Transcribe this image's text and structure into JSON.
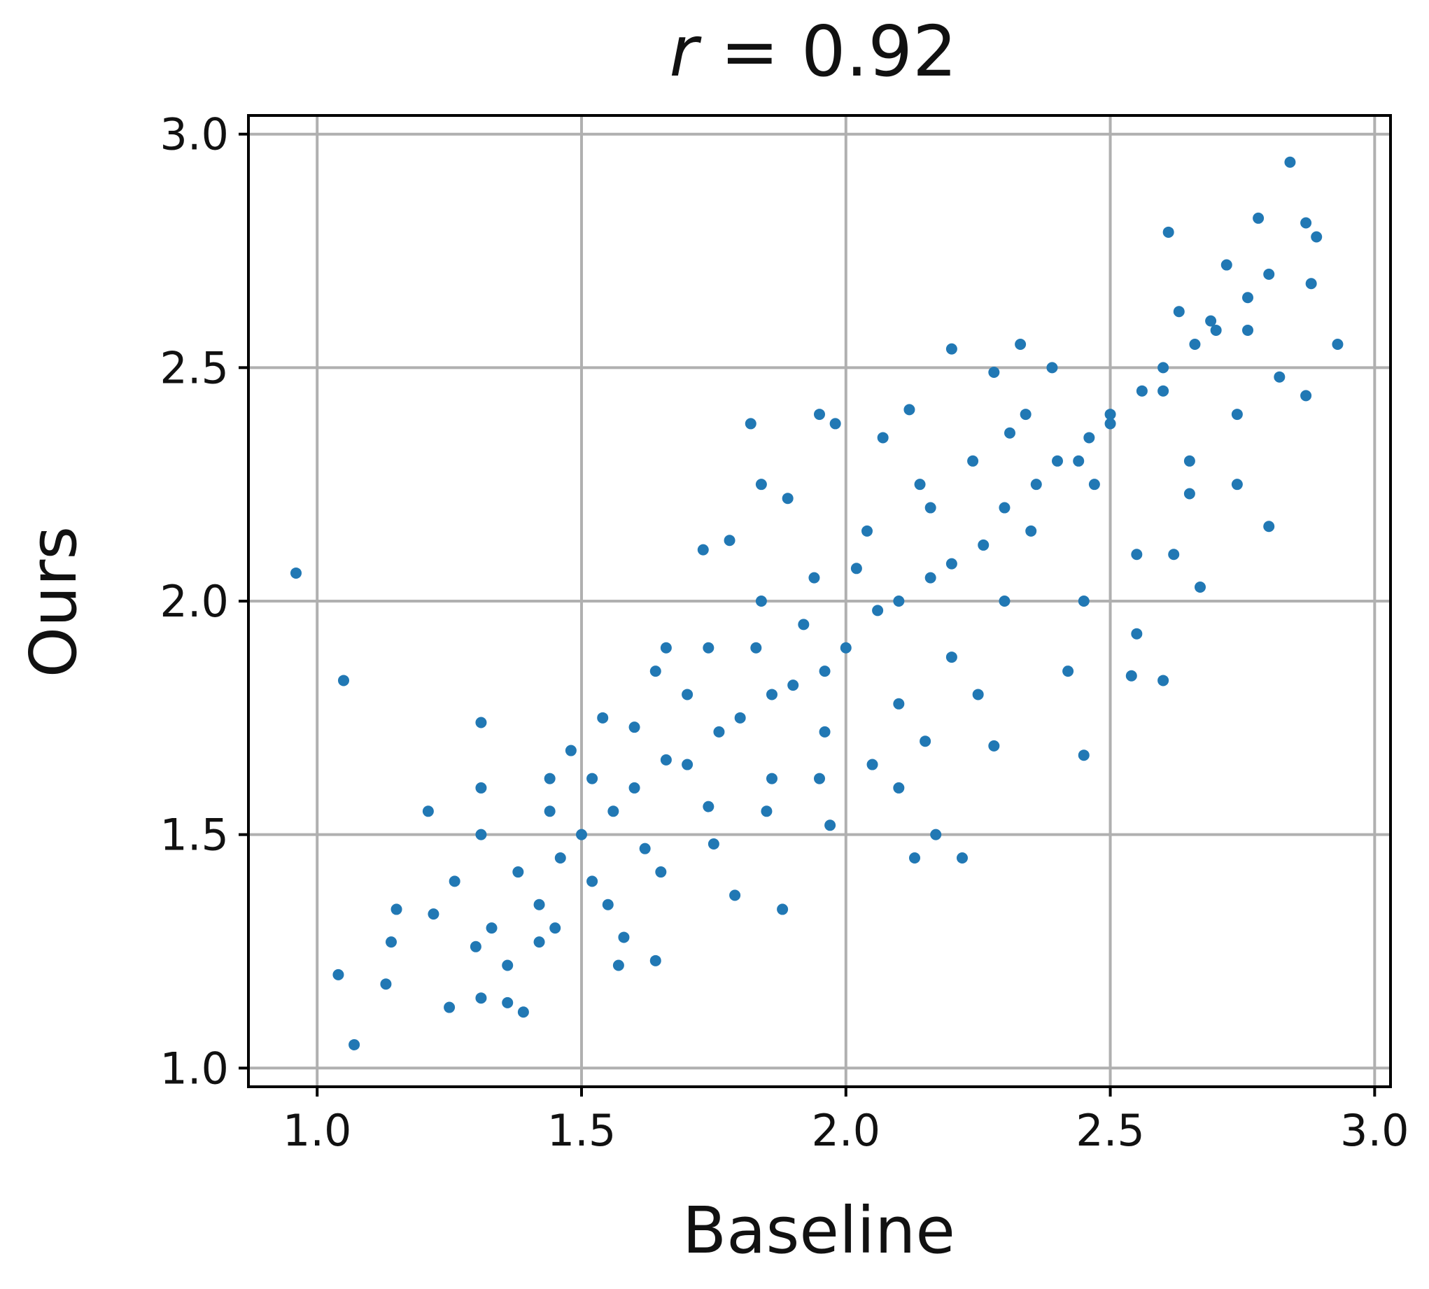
{
  "chart_data": {
    "type": "scatter",
    "title_prefix": "r",
    "title_rest": " = 0.92",
    "xlabel": "Baseline",
    "ylabel": "Ours",
    "xlim": [
      0.87,
      3.03
    ],
    "ylim": [
      0.96,
      3.04
    ],
    "xticks": [
      "1.0",
      "1.5",
      "2.0",
      "2.5",
      "3.0"
    ],
    "yticks": [
      "1.0",
      "1.5",
      "2.0",
      "2.5",
      "3.0"
    ],
    "grid": true,
    "marker_color": "#2178b4",
    "points": [
      [
        0.96,
        2.06
      ],
      [
        1.05,
        1.83
      ],
      [
        1.04,
        1.2
      ],
      [
        1.07,
        1.05
      ],
      [
        1.13,
        1.18
      ],
      [
        1.14,
        1.27
      ],
      [
        1.15,
        1.34
      ],
      [
        1.21,
        1.55
      ],
      [
        1.31,
        1.74
      ],
      [
        1.31,
        1.6
      ],
      [
        1.31,
        1.5
      ],
      [
        1.26,
        1.4
      ],
      [
        1.22,
        1.33
      ],
      [
        1.25,
        1.13
      ],
      [
        1.31,
        1.15
      ],
      [
        1.39,
        1.12
      ],
      [
        1.36,
        1.14
      ],
      [
        1.82,
        2.38
      ],
      [
        1.95,
        2.4
      ],
      [
        1.98,
        2.38
      ],
      [
        2.2,
        2.54
      ],
      [
        2.33,
        2.55
      ],
      [
        2.61,
        2.79
      ],
      [
        2.78,
        2.82
      ],
      [
        2.84,
        2.94
      ],
      [
        2.87,
        2.81
      ],
      [
        2.89,
        2.78
      ],
      [
        2.93,
        2.55
      ],
      [
        2.87,
        2.44
      ],
      [
        2.8,
        2.16
      ],
      [
        2.74,
        2.25
      ],
      [
        2.54,
        1.84
      ],
      [
        2.6,
        1.83
      ],
      [
        2.45,
        1.67
      ],
      [
        2.17,
        1.5
      ],
      [
        2.22,
        1.45
      ],
      [
        2.13,
        1.45
      ],
      [
        1.88,
        1.34
      ],
      [
        1.57,
        1.22
      ],
      [
        1.64,
        1.23
      ],
      [
        1.42,
        1.27
      ],
      [
        1.48,
        1.68
      ],
      [
        1.66,
        1.9
      ],
      [
        1.73,
        2.11
      ],
      [
        1.78,
        2.13
      ],
      [
        1.84,
        2.25
      ],
      [
        1.89,
        2.22
      ],
      [
        2.07,
        2.35
      ],
      [
        2.12,
        2.41
      ],
      [
        2.28,
        2.49
      ],
      [
        2.74,
        2.4
      ],
      [
        2.82,
        2.48
      ],
      [
        2.88,
        2.68
      ],
      [
        2.69,
        2.6
      ],
      [
        2.5,
        2.38
      ],
      [
        2.47,
        2.25
      ],
      [
        2.65,
        2.23
      ],
      [
        2.62,
        2.1
      ],
      [
        2.67,
        2.03
      ],
      [
        2.55,
        1.93
      ],
      [
        2.42,
        1.85
      ],
      [
        2.28,
        1.69
      ],
      [
        2.1,
        1.6
      ],
      [
        1.97,
        1.52
      ],
      [
        1.79,
        1.37
      ],
      [
        1.58,
        1.28
      ],
      [
        1.45,
        1.3
      ],
      [
        1.36,
        1.22
      ],
      [
        1.3,
        1.26
      ],
      [
        1.38,
        1.42
      ],
      [
        1.44,
        1.55
      ],
      [
        1.52,
        1.62
      ],
      [
        1.6,
        1.73
      ],
      [
        1.7,
        1.8
      ],
      [
        1.83,
        1.9
      ],
      [
        1.92,
        1.95
      ],
      [
        2.02,
        2.07
      ],
      [
        2.16,
        2.2
      ],
      [
        2.31,
        2.36
      ],
      [
        2.39,
        2.5
      ],
      [
        2.63,
        2.62
      ],
      [
        2.72,
        2.72
      ],
      [
        2.8,
        2.7
      ],
      [
        2.76,
        2.58
      ],
      [
        2.6,
        2.45
      ],
      [
        2.44,
        2.3
      ],
      [
        2.35,
        2.15
      ],
      [
        2.3,
        2.0
      ],
      [
        2.2,
        1.88
      ],
      [
        2.1,
        1.78
      ],
      [
        1.96,
        1.72
      ],
      [
        1.86,
        1.62
      ],
      [
        1.74,
        1.56
      ],
      [
        1.62,
        1.47
      ],
      [
        1.52,
        1.4
      ],
      [
        1.42,
        1.35
      ],
      [
        1.33,
        1.3
      ],
      [
        1.5,
        1.5
      ],
      [
        1.6,
        1.6
      ],
      [
        1.7,
        1.65
      ],
      [
        1.8,
        1.75
      ],
      [
        1.9,
        1.82
      ],
      [
        2.0,
        1.9
      ],
      [
        2.1,
        2.0
      ],
      [
        2.2,
        2.08
      ],
      [
        2.3,
        2.2
      ],
      [
        2.4,
        2.3
      ],
      [
        2.5,
        2.4
      ],
      [
        2.6,
        2.5
      ],
      [
        2.7,
        2.58
      ],
      [
        2.45,
        2.0
      ],
      [
        2.55,
        2.1
      ],
      [
        2.65,
        2.3
      ],
      [
        2.25,
        1.8
      ],
      [
        2.15,
        1.7
      ],
      [
        2.05,
        1.65
      ],
      [
        1.95,
        1.62
      ],
      [
        1.85,
        1.55
      ],
      [
        1.75,
        1.48
      ],
      [
        1.65,
        1.42
      ],
      [
        1.55,
        1.35
      ],
      [
        1.46,
        1.45
      ],
      [
        1.56,
        1.55
      ],
      [
        1.66,
        1.66
      ],
      [
        1.76,
        1.72
      ],
      [
        1.86,
        1.8
      ],
      [
        1.96,
        1.85
      ],
      [
        2.06,
        1.98
      ],
      [
        2.16,
        2.05
      ],
      [
        2.26,
        2.12
      ],
      [
        2.36,
        2.25
      ],
      [
        2.46,
        2.35
      ],
      [
        2.56,
        2.45
      ],
      [
        2.66,
        2.55
      ],
      [
        2.76,
        2.65
      ],
      [
        2.34,
        2.4
      ],
      [
        2.24,
        2.3
      ],
      [
        2.14,
        2.25
      ],
      [
        2.04,
        2.15
      ],
      [
        1.94,
        2.05
      ],
      [
        1.84,
        2.0
      ],
      [
        1.74,
        1.9
      ],
      [
        1.64,
        1.85
      ],
      [
        1.54,
        1.75
      ],
      [
        1.44,
        1.62
      ]
    ]
  }
}
